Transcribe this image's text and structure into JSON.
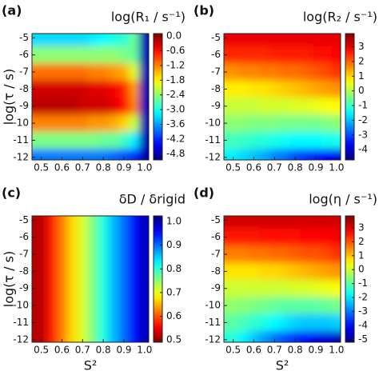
{
  "chart_data": [
    {
      "type": "heatmap",
      "label": "(a)",
      "title": "log(R₁ / s⁻¹)",
      "ylabel": "log(τ / s)",
      "x": [
        0.5,
        0.55,
        0.6,
        0.65,
        0.7,
        0.75,
        0.8,
        0.85,
        0.9,
        0.95,
        1.0
      ],
      "y": [
        -5,
        -6,
        -7,
        -8,
        -9,
        -10,
        -11,
        -12
      ],
      "values": [
        [
          -3.3,
          -3.3,
          -3.3,
          -3.3,
          -3.3,
          -3.2,
          -3.1,
          -3.0,
          -2.9,
          -2.6,
          -4.8
        ],
        [
          -2.4,
          -2.4,
          -2.4,
          -2.4,
          -2.4,
          -2.4,
          -2.4,
          -2.4,
          -2.5,
          -2.6,
          -4.8
        ],
        [
          -1.1,
          -1.1,
          -1.1,
          -1.1,
          -1.1,
          -1.2,
          -1.2,
          -1.3,
          -1.4,
          -2.0,
          -4.8
        ],
        [
          -0.3,
          -0.3,
          -0.3,
          -0.3,
          -0.3,
          -0.4,
          -0.4,
          -0.5,
          -0.7,
          -1.3,
          -4.8
        ],
        [
          -0.2,
          -0.2,
          -0.2,
          -0.2,
          -0.3,
          -0.3,
          -0.3,
          -0.4,
          -0.6,
          -1.2,
          -4.8
        ],
        [
          -1.2,
          -1.2,
          -1.2,
          -1.2,
          -1.2,
          -1.3,
          -1.3,
          -1.4,
          -1.6,
          -2.1,
          -4.8
        ],
        [
          -2.5,
          -2.5,
          -2.5,
          -2.5,
          -2.5,
          -2.5,
          -2.6,
          -2.6,
          -2.8,
          -3.2,
          -4.8
        ],
        [
          -3.8,
          -3.8,
          -3.8,
          -3.8,
          -3.8,
          -3.8,
          -3.8,
          -3.9,
          -4.0,
          -4.2,
          -4.8
        ]
      ],
      "xlim": [
        0.455,
        1.02
      ],
      "ylim": [
        -12.15,
        -4.75
      ],
      "xticks": [
        0.5,
        0.6,
        0.7,
        0.8,
        0.9,
        {
          "value": 1,
          "label": "1.0"
        }
      ],
      "yticks": [
        -5,
        -6,
        -7,
        -8,
        -9,
        -10,
        -11,
        -12
      ],
      "colormap": "jet",
      "clim": [
        -5.05,
        0.1
      ],
      "cticks": [
        {
          "value": 0,
          "label": "0.0"
        },
        -0.6,
        -1.2,
        -1.8,
        -2.4,
        {
          "value": -3,
          "label": "-3.0"
        },
        -3.6,
        -4.2,
        -4.8
      ]
    },
    {
      "type": "heatmap",
      "label": "(b)",
      "title": "log(R₂ / s⁻¹)",
      "x": [
        0.5,
        0.55,
        0.6,
        0.65,
        0.7,
        0.75,
        0.8,
        0.85,
        0.9,
        0.95,
        1.0
      ],
      "y": [
        -5,
        -6,
        -7,
        -8,
        -9,
        -10,
        -11,
        -12
      ],
      "values": [
        [
          3.0,
          3.0,
          3.0,
          3.0,
          3.0,
          3.0,
          3.0,
          3.0,
          3.0,
          3.0,
          3.0
        ],
        [
          2.5,
          2.5,
          2.5,
          2.5,
          2.6,
          2.6,
          2.6,
          2.6,
          2.7,
          2.7,
          2.8
        ],
        [
          1.6,
          1.7,
          1.7,
          1.8,
          1.8,
          1.9,
          1.9,
          2.0,
          2.1,
          2.2,
          2.4
        ],
        [
          0.8,
          0.8,
          0.9,
          0.9,
          1.0,
          1.1,
          1.2,
          1.3,
          1.4,
          1.5,
          1.6
        ],
        [
          0.2,
          0.2,
          0.2,
          0.3,
          0.3,
          0.3,
          0.4,
          0.4,
          0.5,
          0.6,
          0.7
        ],
        [
          -0.3,
          -0.3,
          -0.4,
          -0.4,
          -0.4,
          -0.5,
          -0.5,
          -0.5,
          -0.5,
          -0.4,
          -0.3
        ],
        [
          -0.9,
          -1.0,
          -1.1,
          -1.2,
          -1.3,
          -1.4,
          -1.5,
          -1.5,
          -1.5,
          -1.4,
          -1.3
        ],
        [
          -1.6,
          -1.8,
          -2.0,
          -2.2,
          -2.5,
          -2.7,
          -3.0,
          -3.2,
          -3.4,
          -3.6,
          -3.8
        ]
      ],
      "xlim": [
        0.455,
        1.02
      ],
      "ylim": [
        -12.15,
        -4.75
      ],
      "xticks": [
        0.5,
        0.6,
        0.7,
        0.8,
        0.9,
        {
          "value": 1,
          "label": "1.0"
        }
      ],
      "yticks": [
        -5,
        -6,
        -7,
        -8,
        -9,
        -10,
        -11,
        -12
      ],
      "colormap": "jet",
      "clim": [
        -4.7,
        3.9
      ],
      "cticks": [
        3,
        2,
        1,
        0,
        -1,
        -2,
        -3,
        -4
      ]
    },
    {
      "type": "heatmap",
      "label": "(c)",
      "title": "δD / δrigid",
      "ylabel": "log(τ / s)",
      "xlabel": "S²",
      "x": [
        0.5,
        0.55,
        0.6,
        0.65,
        0.7,
        0.75,
        0.8,
        0.85,
        0.9,
        0.95,
        1.0
      ],
      "values": [
        [
          0.52,
          0.57,
          0.62,
          0.67,
          0.71,
          0.76,
          0.81,
          0.86,
          0.9,
          0.95,
          0.99
        ]
      ],
      "xlim": [
        0.455,
        1.02
      ],
      "ylim": [
        -12.15,
        -4.75
      ],
      "xticks": [
        0.5,
        0.6,
        0.7,
        0.8,
        0.9,
        {
          "value": 1,
          "label": "1.0"
        }
      ],
      "yticks": [
        -5,
        -6,
        -7,
        -8,
        -9,
        -10,
        -11,
        -12
      ],
      "colormap": "jet_r",
      "clim": [
        0.49,
        1.024
      ],
      "cticks": [
        {
          "value": 1,
          "label": "1.0"
        },
        0.9,
        0.8,
        0.7,
        0.6,
        0.5
      ]
    },
    {
      "type": "heatmap",
      "label": "(d)",
      "title": "log(η / s⁻¹)",
      "xlabel": "S²",
      "x": [
        0.5,
        0.55,
        0.6,
        0.65,
        0.7,
        0.75,
        0.8,
        0.85,
        0.9,
        0.95,
        1.0
      ],
      "y": [
        -5,
        -6,
        -7,
        -8,
        -9,
        -10,
        -11,
        -12
      ],
      "values": [
        [
          3.1,
          3.1,
          3.1,
          3.1,
          3.1,
          3.1,
          3.1,
          3.1,
          3.1,
          3.1,
          3.1
        ],
        [
          2.5,
          2.5,
          2.5,
          2.6,
          2.6,
          2.6,
          2.6,
          2.7,
          2.7,
          2.7,
          2.8
        ],
        [
          1.6,
          1.6,
          1.7,
          1.7,
          1.8,
          1.8,
          1.9,
          2.0,
          2.0,
          2.1,
          2.3
        ],
        [
          0.7,
          0.7,
          0.7,
          0.8,
          0.8,
          0.9,
          1.0,
          1.1,
          1.2,
          1.3,
          1.4
        ],
        [
          0,
          0,
          0,
          0,
          0,
          0,
          0.1,
          0.1,
          0.2,
          0.3,
          0.4
        ],
        [
          -0.5,
          -0.6,
          -0.7,
          -0.8,
          -0.9,
          -1.0,
          -1.0,
          -1.0,
          -1.0,
          -0.9,
          -0.8
        ],
        [
          -1.0,
          -1.2,
          -1.4,
          -1.6,
          -1.8,
          -2.0,
          -2.2,
          -2.3,
          -2.3,
          -2.3,
          -2.2
        ],
        [
          -1.5,
          -1.9,
          -2.3,
          -2.7,
          -3.1,
          -3.4,
          -3.7,
          -4.0,
          -4.2,
          -4.4,
          -4.6
        ]
      ],
      "xlim": [
        0.455,
        1.02
      ],
      "ylim": [
        -12.15,
        -4.75
      ],
      "xticks": [
        0.5,
        0.6,
        0.7,
        0.8,
        0.9,
        {
          "value": 1,
          "label": "1.0"
        }
      ],
      "yticks": [
        -5,
        -6,
        -7,
        -8,
        -9,
        -10,
        -11,
        -12
      ],
      "colormap": "jet",
      "clim": [
        -5.2,
        3.85
      ],
      "cticks": [
        3,
        2,
        1,
        0,
        -1,
        -2,
        -3,
        -4,
        -5
      ]
    }
  ]
}
